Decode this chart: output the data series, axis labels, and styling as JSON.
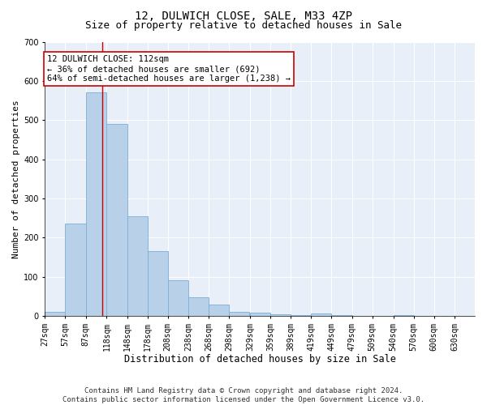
{
  "title": "12, DULWICH CLOSE, SALE, M33 4ZP",
  "subtitle": "Size of property relative to detached houses in Sale",
  "xlabel": "Distribution of detached houses by size in Sale",
  "ylabel": "Number of detached properties",
  "bar_color": "#b8d0e8",
  "bar_edge_color": "#7aaed6",
  "background_color": "#e8eff8",
  "grid_color": "#ffffff",
  "vline_color": "#cc0000",
  "vline_x": 112,
  "annotation_text": "12 DULWICH CLOSE: 112sqm\n← 36% of detached houses are smaller (692)\n64% of semi-detached houses are larger (1,238) →",
  "annotation_box_facecolor": "#ffffff",
  "annotation_box_edgecolor": "#cc0000",
  "bins_left_edges": [
    27,
    57,
    87,
    118,
    148,
    178,
    208,
    238,
    268,
    298,
    329,
    359,
    389,
    419,
    449,
    479,
    509,
    540,
    570,
    600,
    630
  ],
  "bin_width": 30,
  "bar_heights": [
    10,
    235,
    570,
    490,
    255,
    165,
    90,
    48,
    28,
    10,
    8,
    3,
    2,
    7,
    2,
    0,
    0,
    2,
    0,
    0,
    0
  ],
  "ylim": [
    0,
    700
  ],
  "yticks": [
    0,
    100,
    200,
    300,
    400,
    500,
    600,
    700
  ],
  "footer_text": "Contains HM Land Registry data © Crown copyright and database right 2024.\nContains public sector information licensed under the Open Government Licence v3.0.",
  "title_fontsize": 10,
  "subtitle_fontsize": 9,
  "xlabel_fontsize": 8.5,
  "ylabel_fontsize": 8,
  "tick_fontsize": 7,
  "footer_fontsize": 6.5,
  "annotation_fontsize": 7.5
}
